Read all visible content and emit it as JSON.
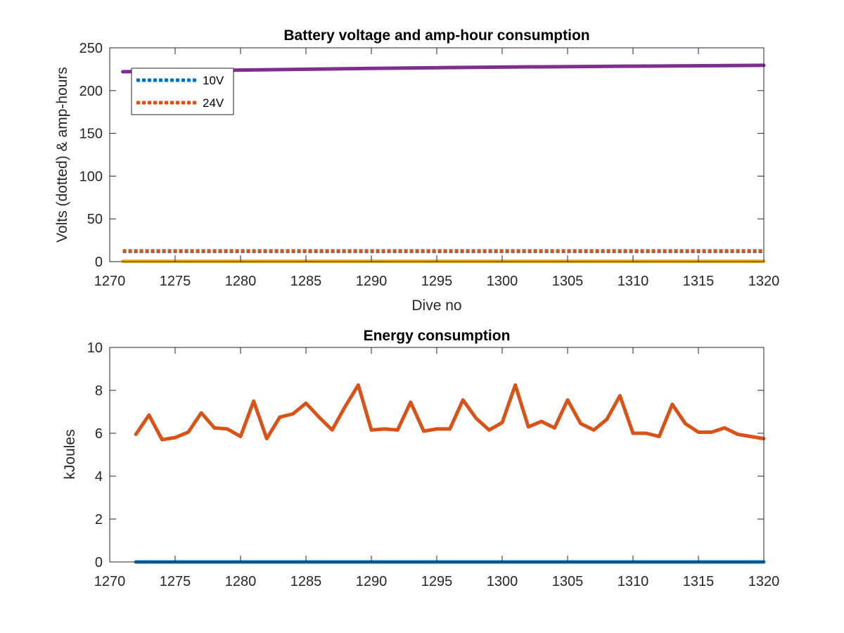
{
  "chart_data": [
    {
      "type": "line",
      "title": "Battery voltage and amp-hour consumption",
      "xlabel": "Dive no",
      "ylabel": "Volts (dotted) & amp-hours",
      "xlim": [
        1270,
        1320
      ],
      "ylim": [
        0,
        250
      ],
      "xticks": [
        "1270",
        "1275",
        "1280",
        "1285",
        "1290",
        "1295",
        "1300",
        "1305",
        "1310",
        "1315",
        "1320"
      ],
      "yticks": [
        "0",
        "50",
        "100",
        "150",
        "200",
        "250"
      ],
      "legend": {
        "placement": "top-left",
        "entries": [
          {
            "name": "10V",
            "color": "#0072BD",
            "style": "dotted"
          },
          {
            "name": "24V",
            "color": "#D95319",
            "style": "dotted"
          }
        ]
      },
      "series": [
        {
          "name": "10V",
          "color": "#0072BD",
          "style": "dotted",
          "x": [
            1271,
            1320
          ],
          "y": [
            12,
            12
          ]
        },
        {
          "name": "24V",
          "color": "#D95319",
          "style": "dotted",
          "x": [
            1271,
            1320
          ],
          "y": [
            12.5,
            12.5
          ]
        },
        {
          "color": "#7E2F8E",
          "style": "solid",
          "x": [
            1271,
            1280,
            1290,
            1300,
            1310,
            1320
          ],
          "y": [
            222,
            224,
            226,
            227.5,
            228.5,
            229.5
          ]
        },
        {
          "color": "#EDB120",
          "style": "solid",
          "x": [
            1271,
            1320
          ],
          "y": [
            0.5,
            0.5
          ]
        }
      ]
    },
    {
      "type": "line",
      "title": "Energy consumption",
      "xlabel": "",
      "ylabel": "kJoules",
      "xlim": [
        1270,
        1320
      ],
      "ylim": [
        0,
        10
      ],
      "xticks": [
        "1270",
        "1275",
        "1280",
        "1285",
        "1290",
        "1295",
        "1300",
        "1305",
        "1310",
        "1315",
        "1320"
      ],
      "yticks": [
        "0",
        "2",
        "4",
        "6",
        "8",
        "10"
      ],
      "series": [
        {
          "color": "#D95319",
          "style": "solid",
          "x": [
            1272,
            1273,
            1274,
            1275,
            1276,
            1277,
            1278,
            1279,
            1280,
            1281,
            1282,
            1283,
            1284,
            1285,
            1286,
            1287,
            1288,
            1289,
            1290,
            1291,
            1292,
            1293,
            1294,
            1295,
            1296,
            1297,
            1298,
            1299,
            1300,
            1301,
            1302,
            1303,
            1304,
            1305,
            1306,
            1307,
            1308,
            1309,
            1310,
            1311,
            1312,
            1313,
            1314,
            1315,
            1316,
            1317,
            1318,
            1319,
            1320
          ],
          "y": [
            5.95,
            6.85,
            5.7,
            5.8,
            6.05,
            6.95,
            6.25,
            6.2,
            5.85,
            7.5,
            5.75,
            6.75,
            6.9,
            7.4,
            6.75,
            6.15,
            7.25,
            8.25,
            6.15,
            6.2,
            6.15,
            7.45,
            6.1,
            6.2,
            6.2,
            7.55,
            6.7,
            6.15,
            6.5,
            8.25,
            6.3,
            6.55,
            6.25,
            7.55,
            6.45,
            6.15,
            6.65,
            7.75,
            6.0,
            6.0,
            5.85,
            7.35,
            6.45,
            6.05,
            6.05,
            6.25,
            5.95,
            5.85,
            5.75
          ]
        },
        {
          "color": "#0072BD",
          "style": "solid",
          "x": [
            1272,
            1320
          ],
          "y": [
            0,
            0
          ]
        }
      ]
    }
  ]
}
